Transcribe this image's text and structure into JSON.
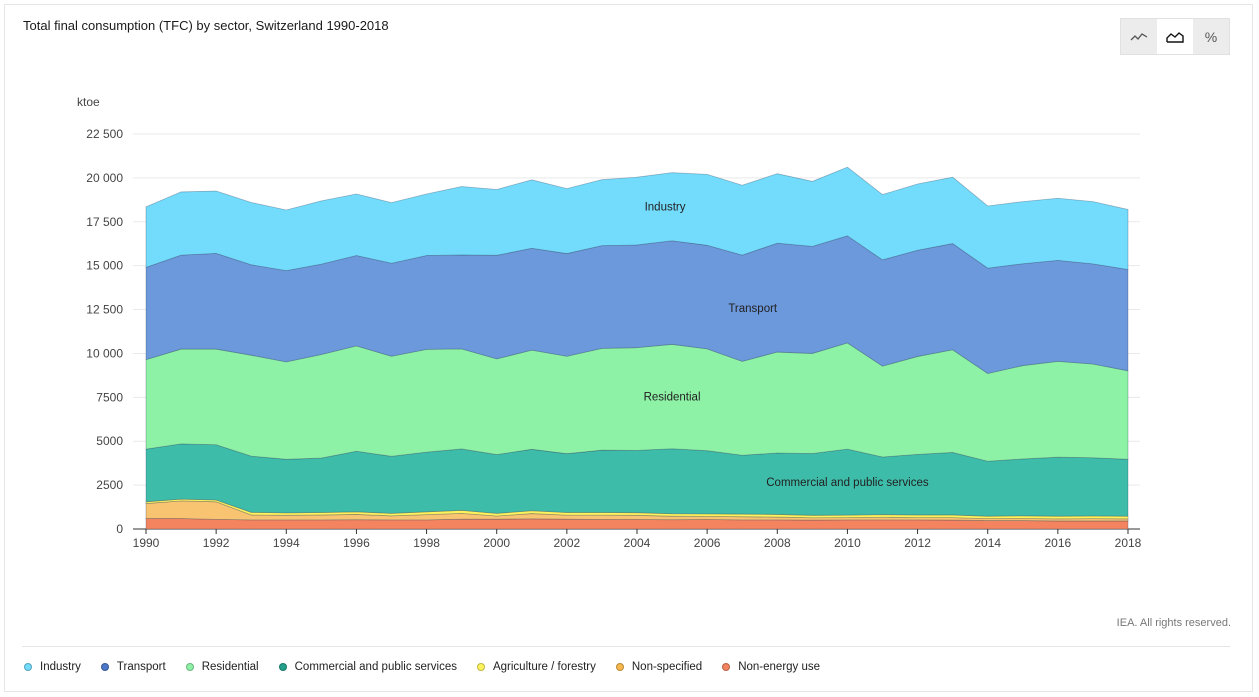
{
  "title": "Total final consumption (TFC) by sector, Switzerland 1990-2018",
  "view_toggles": [
    {
      "name": "line-chart-icon",
      "glyph": "〜",
      "active": false
    },
    {
      "name": "area-chart-icon",
      "glyph": "▲",
      "active": true
    },
    {
      "name": "percent-icon",
      "glyph": "%",
      "active": false
    }
  ],
  "credit": "IEA. All rights reserved.",
  "chart_data": {
    "type": "area",
    "stacked": true,
    "ylabel": "ktoe",
    "ylim": [
      0,
      22500
    ],
    "yticks": [
      0,
      2500,
      5000,
      7500,
      10000,
      12500,
      15000,
      17500,
      20000,
      22500
    ],
    "ytick_labels": [
      "0",
      "2500",
      "5000",
      "7500",
      "10 000",
      "12 500",
      "15 000",
      "17 500",
      "20 000",
      "22 500"
    ],
    "x": [
      1990,
      1991,
      1992,
      1993,
      1994,
      1995,
      1996,
      1997,
      1998,
      1999,
      2000,
      2001,
      2002,
      2003,
      2004,
      2005,
      2006,
      2007,
      2008,
      2009,
      2010,
      2011,
      2012,
      2013,
      2014,
      2015,
      2016,
      2017,
      2018
    ],
    "xticks": [
      1990,
      1992,
      1994,
      1996,
      1998,
      2000,
      2002,
      2004,
      2006,
      2008,
      2010,
      2012,
      2014,
      2016,
      2018
    ],
    "grid": true,
    "legend_position": "bottom",
    "series": [
      {
        "name": "Non-energy use",
        "color": "#f4845f",
        "values": [
          600,
          600,
          550,
          520,
          520,
          520,
          530,
          520,
          520,
          560,
          560,
          580,
          560,
          540,
          540,
          530,
          540,
          520,
          520,
          510,
          520,
          520,
          520,
          510,
          480,
          480,
          460,
          460,
          460
        ]
      },
      {
        "name": "Non-specified",
        "color": "#f8c471",
        "values": [
          850,
          1000,
          1000,
          280,
          260,
          280,
          300,
          230,
          300,
          330,
          180,
          300,
          230,
          250,
          240,
          200,
          180,
          180,
          160,
          130,
          130,
          150,
          130,
          140,
          110,
          120,
          120,
          130,
          120
        ]
      },
      {
        "name": "Agriculture / forestry",
        "color": "#fff35c",
        "values": [
          100,
          100,
          100,
          150,
          140,
          140,
          150,
          140,
          160,
          170,
          150,
          160,
          150,
          150,
          150,
          140,
          140,
          150,
          150,
          140,
          140,
          150,
          150,
          150,
          140,
          150,
          150,
          150,
          150
        ]
      },
      {
        "name": "Commercial and public services",
        "color": "#3ebcaa",
        "values": [
          3000,
          3150,
          3150,
          3200,
          3050,
          3100,
          3450,
          3250,
          3400,
          3500,
          3350,
          3500,
          3350,
          3550,
          3550,
          3700,
          3600,
          3350,
          3500,
          3520,
          3760,
          3280,
          3450,
          3560,
          3130,
          3240,
          3360,
          3320,
          3240
        ]
      },
      {
        "name": "Residential",
        "color": "#8df2a6",
        "values": [
          5100,
          5400,
          5450,
          5750,
          5550,
          5900,
          6000,
          5700,
          5850,
          5700,
          5450,
          5650,
          5550,
          5800,
          5850,
          5950,
          5800,
          5350,
          5750,
          5700,
          6050,
          5180,
          5580,
          5850,
          5000,
          5320,
          5460,
          5340,
          5040
        ]
      },
      {
        "name": "Transport",
        "color": "#6c98dc",
        "values": [
          5250,
          5350,
          5450,
          5150,
          5200,
          5150,
          5150,
          5300,
          5350,
          5350,
          5900,
          5800,
          5850,
          5850,
          5850,
          5900,
          5900,
          6050,
          6200,
          6100,
          6100,
          6050,
          6050,
          6050,
          6000,
          5800,
          5750,
          5700,
          5770
        ]
      },
      {
        "name": "Industry",
        "color": "#73dcfc",
        "values": [
          3450,
          3600,
          3550,
          3550,
          3450,
          3600,
          3500,
          3450,
          3500,
          3900,
          3750,
          3900,
          3700,
          3760,
          3860,
          3880,
          4040,
          3980,
          3960,
          3700,
          3910,
          3720,
          3770,
          3780,
          3540,
          3540,
          3540,
          3550,
          3420
        ]
      }
    ],
    "area_labels": [
      "Industry",
      "Transport",
      "Residential",
      "Commercial and public services"
    ]
  },
  "legend": [
    {
      "label": "Industry",
      "color": "#73dcfc"
    },
    {
      "label": "Transport",
      "color": "#4b78c8"
    },
    {
      "label": "Residential",
      "color": "#8df2a6"
    },
    {
      "label": "Commercial and public services",
      "color": "#23a08c"
    },
    {
      "label": "Agriculture / forestry",
      "color": "#fff35c"
    },
    {
      "label": "Non-specified",
      "color": "#f8b84e"
    },
    {
      "label": "Non-energy use",
      "color": "#f4845f"
    }
  ]
}
